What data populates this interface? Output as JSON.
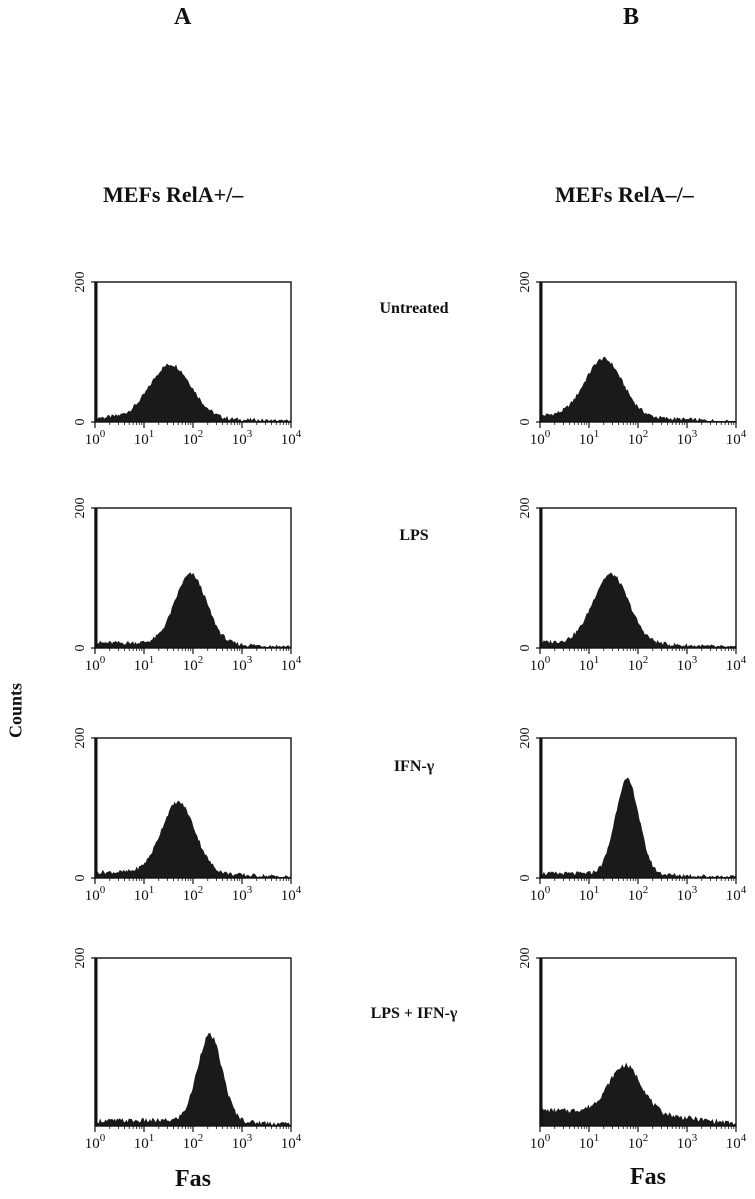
{
  "figure": {
    "panel_a": "A",
    "panel_b": "B",
    "col_a_title": "MEFs RelA+/–",
    "col_b_title": "MEFs RelA–/–",
    "y_title": "Counts",
    "x_title_a": "Fas",
    "x_title_b": "Fas",
    "rows": [
      "Untreated",
      "LPS",
      "IFN-γ",
      "LPS  + IFN-γ"
    ]
  },
  "chart_data": [
    {
      "type": "area",
      "panel": "A",
      "condition": "Untreated",
      "xscale": "log",
      "xlim": [
        1,
        10000
      ],
      "ylim": [
        0,
        200
      ],
      "yticks": [
        0,
        200
      ],
      "xtick_labels": [
        "10^0",
        "10^1",
        "10^2",
        "10^3",
        "10^4"
      ],
      "peak_x": 35,
      "peak_y": 82,
      "width": 0.42,
      "baseline": 6
    },
    {
      "type": "area",
      "panel": "B",
      "condition": "Untreated",
      "xscale": "log",
      "xlim": [
        1,
        10000
      ],
      "ylim": [
        0,
        200
      ],
      "yticks": [
        0,
        200
      ],
      "xtick_labels": [
        "10^0",
        "10^1",
        "10^2",
        "10^3",
        "10^4"
      ],
      "peak_x": 20,
      "peak_y": 90,
      "width": 0.38,
      "baseline": 9
    },
    {
      "type": "area",
      "panel": "A",
      "condition": "LPS",
      "xscale": "log",
      "xlim": [
        1,
        10000
      ],
      "ylim": [
        0,
        200
      ],
      "yticks": [
        0,
        200
      ],
      "xtick_labels": [
        "10^0",
        "10^1",
        "10^2",
        "10^3",
        "10^4"
      ],
      "peak_x": 90,
      "peak_y": 105,
      "width": 0.32,
      "baseline": 7
    },
    {
      "type": "area",
      "panel": "B",
      "condition": "LPS",
      "xscale": "log",
      "xlim": [
        1,
        10000
      ],
      "ylim": [
        0,
        200
      ],
      "yticks": [
        0,
        200
      ],
      "xtick_labels": [
        "10^0",
        "10^1",
        "10^2",
        "10^3",
        "10^4"
      ],
      "peak_x": 28,
      "peak_y": 105,
      "width": 0.36,
      "baseline": 8
    },
    {
      "type": "area",
      "panel": "A",
      "condition": "IFN-γ",
      "xscale": "log",
      "xlim": [
        1,
        10000
      ],
      "ylim": [
        0,
        200
      ],
      "yticks": [
        0,
        200
      ],
      "xtick_labels": [
        "10^0",
        "10^1",
        "10^2",
        "10^3",
        "10^4"
      ],
      "peak_x": 50,
      "peak_y": 108,
      "width": 0.34,
      "baseline": 8
    },
    {
      "type": "area",
      "panel": "B",
      "condition": "IFN-γ",
      "xscale": "log",
      "xlim": [
        1,
        10000
      ],
      "ylim": [
        0,
        200
      ],
      "yticks": [
        0,
        200
      ],
      "xtick_labels": [
        "10^0",
        "10^1",
        "10^2",
        "10^3",
        "10^4"
      ],
      "peak_x": 60,
      "peak_y": 140,
      "width": 0.24,
      "baseline": 6
    },
    {
      "type": "area",
      "panel": "A",
      "condition": "LPS + IFN-γ",
      "xscale": "log",
      "xlim": [
        1,
        10000
      ],
      "ylim": [
        0,
        200
      ],
      "yticks": [
        200
      ],
      "xtick_labels": [
        "10^0",
        "10^1",
        "10^2",
        "10^3",
        "10^4"
      ],
      "peak_x": 220,
      "peak_y": 108,
      "width": 0.25,
      "baseline": 6
    },
    {
      "type": "area",
      "panel": "B",
      "condition": "LPS + IFN-γ",
      "xscale": "log",
      "xlim": [
        1,
        10000
      ],
      "ylim": [
        0,
        200
      ],
      "yticks": [
        200
      ],
      "xtick_labels": [
        "10^0",
        "10^1",
        "10^2",
        "10^3",
        "10^4"
      ],
      "peak_x": 55,
      "peak_y": 72,
      "width": 0.33,
      "baseline": 18
    }
  ]
}
